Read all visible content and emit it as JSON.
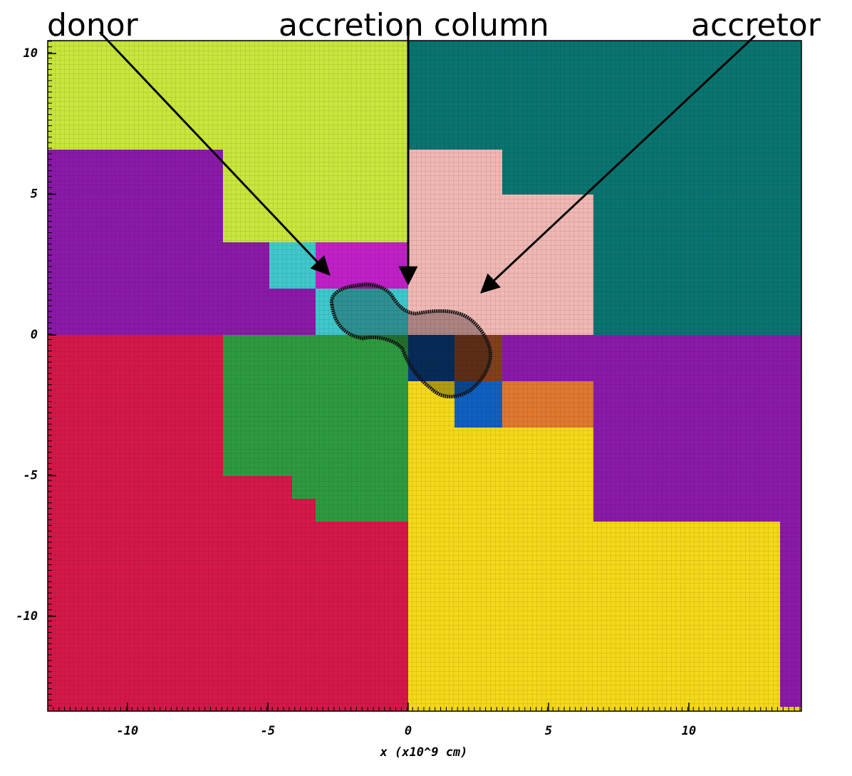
{
  "chart_data": {
    "type": "domain-map",
    "annotations": [
      "donor",
      "accretion column",
      "accretor"
    ],
    "xlabel": "x (x10^9 cm)",
    "xlim": [
      -12.84,
      14.01
    ],
    "ylim": [
      -13.37,
      10.46
    ],
    "xticks": [
      -10,
      -5,
      0,
      5,
      10
    ],
    "yticks": [
      10,
      5,
      0,
      -5,
      -10
    ]
  }
}
